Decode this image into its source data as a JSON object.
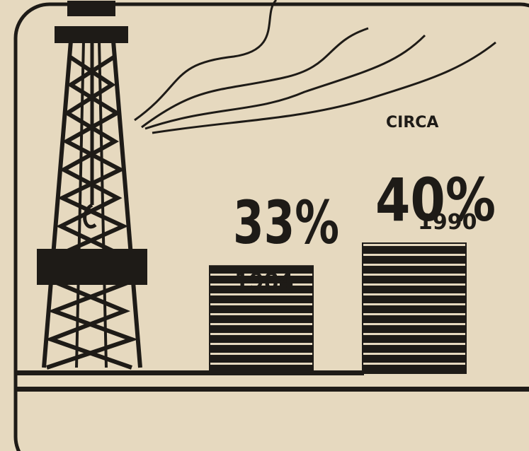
{
  "chart_data": {
    "type": "bar",
    "categories": [
      "1984",
      "1990"
    ],
    "values": [
      33,
      40
    ],
    "value_labels": [
      "33%",
      "40%"
    ],
    "annotation": "CIRCA",
    "color": "#1e1b17"
  }
}
